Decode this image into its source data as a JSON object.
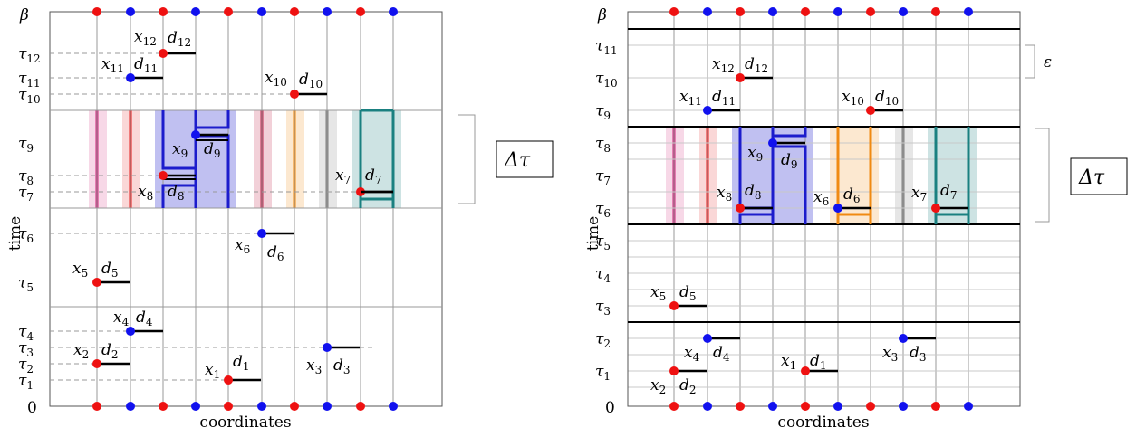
{
  "colors": {
    "red": "#ee1111",
    "blue": "#1111ee",
    "grid": "#999999",
    "axisBox": "#555555",
    "magenta": "#d0257c",
    "red_bar": "#e51f1f",
    "crimson": "#c5284f",
    "orange": "#f08a12",
    "gray": "#808080",
    "teal": "#1a8080",
    "blue_block": "#1c1ccc"
  },
  "panels": [
    {
      "id": "left",
      "y_axis_label": "time",
      "x_axis_label": "coordinates",
      "beta_label": "β",
      "zero_label": "0",
      "tau_labels": [
        "τ12",
        "τ11",
        "τ10",
        "τ9",
        "τ8",
        "τ7",
        "τ6",
        "τ5",
        "τ4",
        "τ3",
        "τ2",
        "τ1"
      ],
      "delta_label": "Δτ",
      "points": [
        {
          "x": "x1",
          "d": "d1"
        },
        {
          "x": "x2",
          "d": "d2"
        },
        {
          "x": "x3",
          "d": "d3"
        },
        {
          "x": "x4",
          "d": "d4"
        },
        {
          "x": "x5",
          "d": "d5"
        },
        {
          "x": "x6",
          "d": "d6"
        },
        {
          "x": "x7",
          "d": "d7"
        },
        {
          "x": "x8",
          "d": "d8"
        },
        {
          "x": "x9",
          "d": "d9"
        },
        {
          "x": "x10",
          "d": "d10"
        },
        {
          "x": "x11",
          "d": "d11"
        },
        {
          "x": "x12",
          "d": "d12"
        }
      ]
    },
    {
      "id": "right",
      "y_axis_label": "time",
      "x_axis_label": "coordinates",
      "beta_label": "β",
      "zero_label": "0",
      "tau_labels": [
        "τ11",
        "τ10",
        "τ9",
        "τ8",
        "τ7",
        "τ6",
        "τ5",
        "τ4",
        "τ3",
        "τ2",
        "τ1"
      ],
      "delta_label": "Δτ",
      "epsilon_label": "ε",
      "points": [
        {
          "x": "x1",
          "d": "d1"
        },
        {
          "x": "x2",
          "d": "d2"
        },
        {
          "x": "x3",
          "d": "d3"
        },
        {
          "x": "x4",
          "d": "d4"
        },
        {
          "x": "x5",
          "d": "d5"
        },
        {
          "x": "x6",
          "d": "d6"
        },
        {
          "x": "x7",
          "d": "d7"
        },
        {
          "x": "x8",
          "d": "d8"
        },
        {
          "x": "x9",
          "d": "d9"
        },
        {
          "x": "x10",
          "d": "d10"
        },
        {
          "x": "x11",
          "d": "d11"
        },
        {
          "x": "x12",
          "d": "d12"
        }
      ]
    }
  ]
}
